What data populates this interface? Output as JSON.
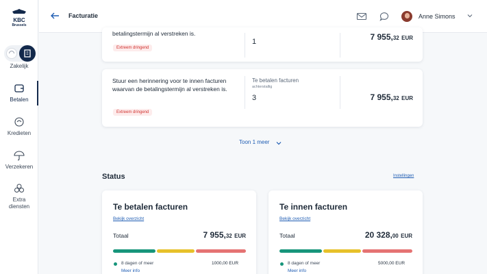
{
  "brand": {
    "name": "KBC",
    "sub": "Brussels",
    "accent": "#13294b",
    "link_color": "#1f5db3"
  },
  "nav": {
    "items": [
      {
        "label": "Zakelijk",
        "icon": "building-icon"
      },
      {
        "label": "Betalen",
        "icon": "wallet-icon",
        "active": true
      },
      {
        "label": "Kredieten",
        "icon": "credit-icon"
      },
      {
        "label": "Verzekeren",
        "icon": "umbrella-icon"
      },
      {
        "label": "Extra diensten",
        "icon": "services-icon"
      }
    ]
  },
  "topbar": {
    "title": "Facturatie",
    "user_name": "Anne Simons",
    "icons": [
      "back-arrow-icon",
      "mail-icon",
      "chat-icon",
      "chevron-down-icon"
    ]
  },
  "tasks": [
    {
      "description_partial": "betalingstermijn al verstreken is.",
      "badge": "Extreem dringend",
      "count": "1",
      "amount_int": "7 955,",
      "amount_dec": "32",
      "currency": "EUR"
    },
    {
      "description": "Stuur een herinnering voor te innen facturen waarvan de betalingstermijn al verstreken is.",
      "badge": "Extreem dringend",
      "label": "Te betalen facturen",
      "sublabel": "achterstallig",
      "count": "3",
      "amount_int": "7 955,",
      "amount_dec": "32",
      "currency": "EUR"
    }
  ],
  "show_more": "Toon 1 meer",
  "status": {
    "title": "Status",
    "settings": "Instellingen",
    "cards": [
      {
        "title": "Te betalen facturen",
        "link": "Bekijk overzicht",
        "total_label": "Totaal",
        "total_int": "7 955,",
        "total_dec": "32",
        "currency": "EUR",
        "legend_text": "8 dagen of meer",
        "legend_amount": "1000,00 EUR",
        "more_info": "Meer info"
      },
      {
        "title": "Te innen facturen",
        "link": "Bekijk overzicht",
        "total_label": "Totaal",
        "total_int": "20 328,",
        "total_dec": "00",
        "currency": "EUR",
        "legend_text": "8 dagen of meer",
        "legend_amount": "5000,00 EUR",
        "more_info": "Meer info"
      }
    ],
    "bar_colors": [
      "#17957b",
      "#e7c12a",
      "#e57373"
    ]
  }
}
